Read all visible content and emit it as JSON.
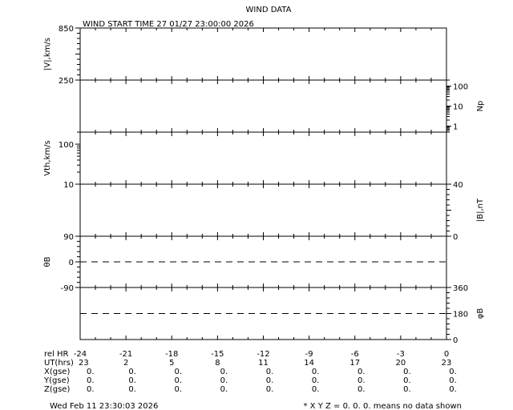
{
  "chart_data": {
    "type": "line",
    "title": "WIND DATA",
    "subtitle": "WIND START TIME  27 01/27 23:00:00 2026",
    "x": {
      "label": "rel HR",
      "range": [
        -24,
        0
      ],
      "tick_labels": [
        "-24",
        "-21",
        "-18",
        "-15",
        "-12",
        "-9",
        "-6",
        "-3",
        "0"
      ],
      "grid": false
    },
    "table_rows": [
      {
        "label": "UT(hrs)",
        "values": [
          "23",
          "2",
          "5",
          "8",
          "11",
          "14",
          "17",
          "20",
          "23"
        ]
      },
      {
        "label": "X(gse)",
        "values": [
          "0.",
          "0.",
          "0.",
          "0.",
          "0.",
          "0.",
          "0.",
          "0.",
          "0."
        ]
      },
      {
        "label": "Y(gse)",
        "values": [
          "0.",
          "0.",
          "0.",
          "0.",
          "0.",
          "0.",
          "0.",
          "0.",
          "0."
        ]
      },
      {
        "label": "Z(gse)",
        "values": [
          "0.",
          "0.",
          "0.",
          "0.",
          "0.",
          "0.",
          "0.",
          "0.",
          "0."
        ]
      }
    ],
    "panels": [
      {
        "ylabel": "|V|,km/s",
        "side": "left",
        "scale": "linear",
        "ylim": [
          250,
          850
        ],
        "tick_labels": [
          "850",
          "250"
        ],
        "series": []
      },
      {
        "ylabel": "Np",
        "side": "right",
        "scale": "log",
        "ylim": [
          0.5,
          200
        ],
        "tick_labels": [
          "100",
          "10",
          "1"
        ],
        "series": []
      },
      {
        "ylabel": "Vth,km/s",
        "side": "left",
        "scale": "log",
        "ylim": [
          10,
          200
        ],
        "tick_labels": [
          "100",
          "10"
        ],
        "series": []
      },
      {
        "ylabel": "|B|,nT",
        "side": "right",
        "scale": "linear",
        "ylim": [
          0,
          40
        ],
        "tick_labels": [
          "40",
          "0"
        ],
        "series": []
      },
      {
        "ylabel": "θB",
        "side": "left",
        "scale": "linear",
        "ylim": [
          -90,
          90
        ],
        "tick_labels": [
          "90",
          "0",
          "-90"
        ],
        "reference_line": 0,
        "series": []
      },
      {
        "ylabel": "φB",
        "side": "right",
        "scale": "linear",
        "ylim": [
          0,
          360
        ],
        "tick_labels": [
          "360",
          "180",
          "0"
        ],
        "reference_line": 180,
        "series": []
      }
    ]
  },
  "footer": {
    "timestamp": "Wed Feb 11 23:30:03 2026",
    "note": "* X Y Z = 0. 0. 0. means no data shown"
  }
}
